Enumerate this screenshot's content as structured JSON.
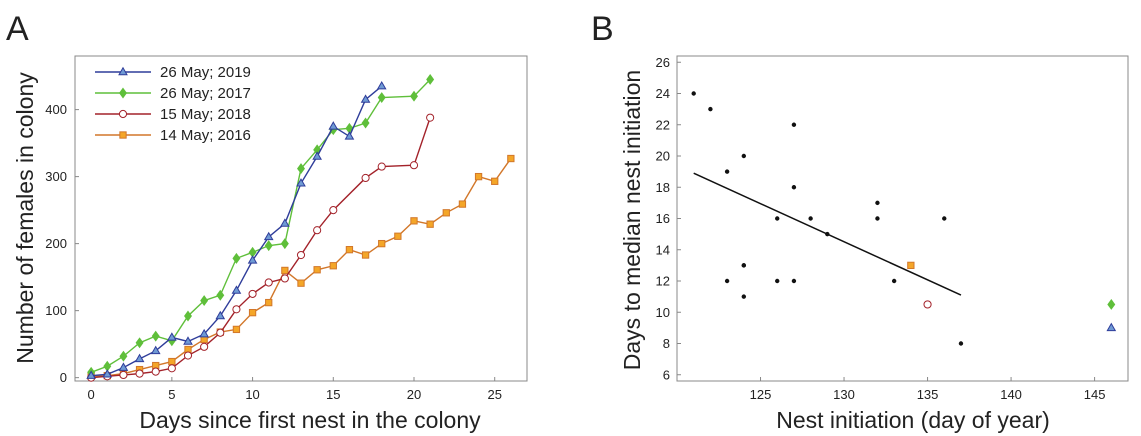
{
  "chart_data": [
    {
      "panel_label": "A",
      "type": "line",
      "xlabel": "Days since first nest in the colony",
      "ylabel": "Number of females in colony",
      "xlim": [
        -1,
        27
      ],
      "ylim": [
        -5,
        480
      ],
      "xticks": [
        0,
        5,
        10,
        15,
        20,
        25
      ],
      "yticks": [
        0,
        100,
        200,
        300,
        400
      ],
      "legend_position": "top-left",
      "series": [
        {
          "name": "26 May;  2019",
          "color": "#2f3d9a",
          "fill": "#6f9ad4",
          "marker": "triangle",
          "x": [
            0,
            1,
            2,
            3,
            4,
            5,
            6,
            7,
            8,
            9,
            10,
            11,
            12,
            13,
            14,
            15,
            16,
            17,
            18
          ],
          "y": [
            3,
            5,
            15,
            28,
            40,
            60,
            54,
            65,
            92,
            130,
            175,
            210,
            230,
            290,
            330,
            375,
            360,
            415,
            435
          ]
        },
        {
          "name": "26 May;  2017",
          "color": "#5fbf3a",
          "fill": "#5fbf3a",
          "marker": "diamond",
          "x": [
            0,
            1,
            2,
            3,
            4,
            5,
            6,
            7,
            8,
            9,
            10,
            11,
            12,
            13,
            14,
            15,
            16,
            17,
            18,
            20,
            21
          ],
          "y": [
            8,
            17,
            32,
            52,
            62,
            55,
            92,
            115,
            123,
            178,
            187,
            197,
            200,
            312,
            340,
            370,
            372,
            380,
            418,
            420,
            445
          ]
        },
        {
          "name": "15 May;  2018",
          "color": "#a3222a",
          "fill": "#ffffff",
          "marker": "circle",
          "x": [
            0,
            1,
            2,
            3,
            4,
            5,
            6,
            7,
            8,
            9,
            10,
            11,
            12,
            13,
            14,
            15,
            17,
            18,
            20,
            21
          ],
          "y": [
            0,
            2,
            4,
            6,
            9,
            14,
            33,
            46,
            67,
            102,
            125,
            142,
            148,
            183,
            220,
            250,
            298,
            315,
            317,
            388
          ]
        },
        {
          "name": "14 May;  2016",
          "color": "#d2772a",
          "fill": "#f4a628",
          "marker": "square",
          "x": [
            0,
            1,
            2,
            3,
            4,
            5,
            6,
            7,
            8,
            9,
            10,
            11,
            12,
            13,
            14,
            15,
            16,
            17,
            18,
            19,
            20,
            21,
            22,
            23,
            24,
            25,
            26
          ],
          "y": [
            2,
            3,
            6,
            12,
            18,
            24,
            42,
            57,
            68,
            72,
            97,
            112,
            160,
            141,
            161,
            167,
            191,
            183,
            200,
            211,
            234,
            229,
            246,
            259,
            300,
            293,
            327
          ]
        }
      ]
    },
    {
      "panel_label": "B",
      "type": "scatter",
      "xlabel": "Nest initiation (day of year)",
      "ylabel": "Days to median nest initiation",
      "xlim": [
        120,
        147
      ],
      "ylim": [
        5.6,
        26.4
      ],
      "xticks": [
        125,
        130,
        135,
        140,
        145
      ],
      "yticks": [
        6,
        8,
        10,
        12,
        14,
        16,
        18,
        20,
        22,
        24,
        26
      ],
      "series": [
        {
          "color": "#111111",
          "marker": "dot",
          "x": [
            121,
            122,
            123,
            124,
            127,
            127,
            124,
            126,
            128,
            129,
            132,
            132,
            136,
            123,
            124,
            124,
            126,
            127,
            133,
            137
          ],
          "y": [
            24,
            23,
            19,
            20,
            22,
            18,
            13,
            16,
            16,
            15,
            17,
            16,
            16,
            12,
            13,
            11,
            12,
            12,
            12,
            8
          ]
        },
        {
          "color": "#d2772a",
          "fill": "#f4a628",
          "marker": "square",
          "x": [
            134
          ],
          "y": [
            13
          ]
        },
        {
          "color": "#a3222a",
          "fill": "#ffffff",
          "marker": "circle",
          "x": [
            135
          ],
          "y": [
            10.5
          ]
        },
        {
          "color": "#5fbf3a",
          "fill": "#5fbf3a",
          "marker": "diamond",
          "x": [
            146
          ],
          "y": [
            10.5
          ]
        },
        {
          "color": "#2f3d9a",
          "fill": "#6f9ad4",
          "marker": "triangle",
          "x": [
            146
          ],
          "y": [
            9
          ]
        }
      ],
      "trendline": {
        "color": "#111111",
        "x": [
          121,
          137
        ],
        "y": [
          18.9,
          11.1
        ]
      }
    }
  ]
}
